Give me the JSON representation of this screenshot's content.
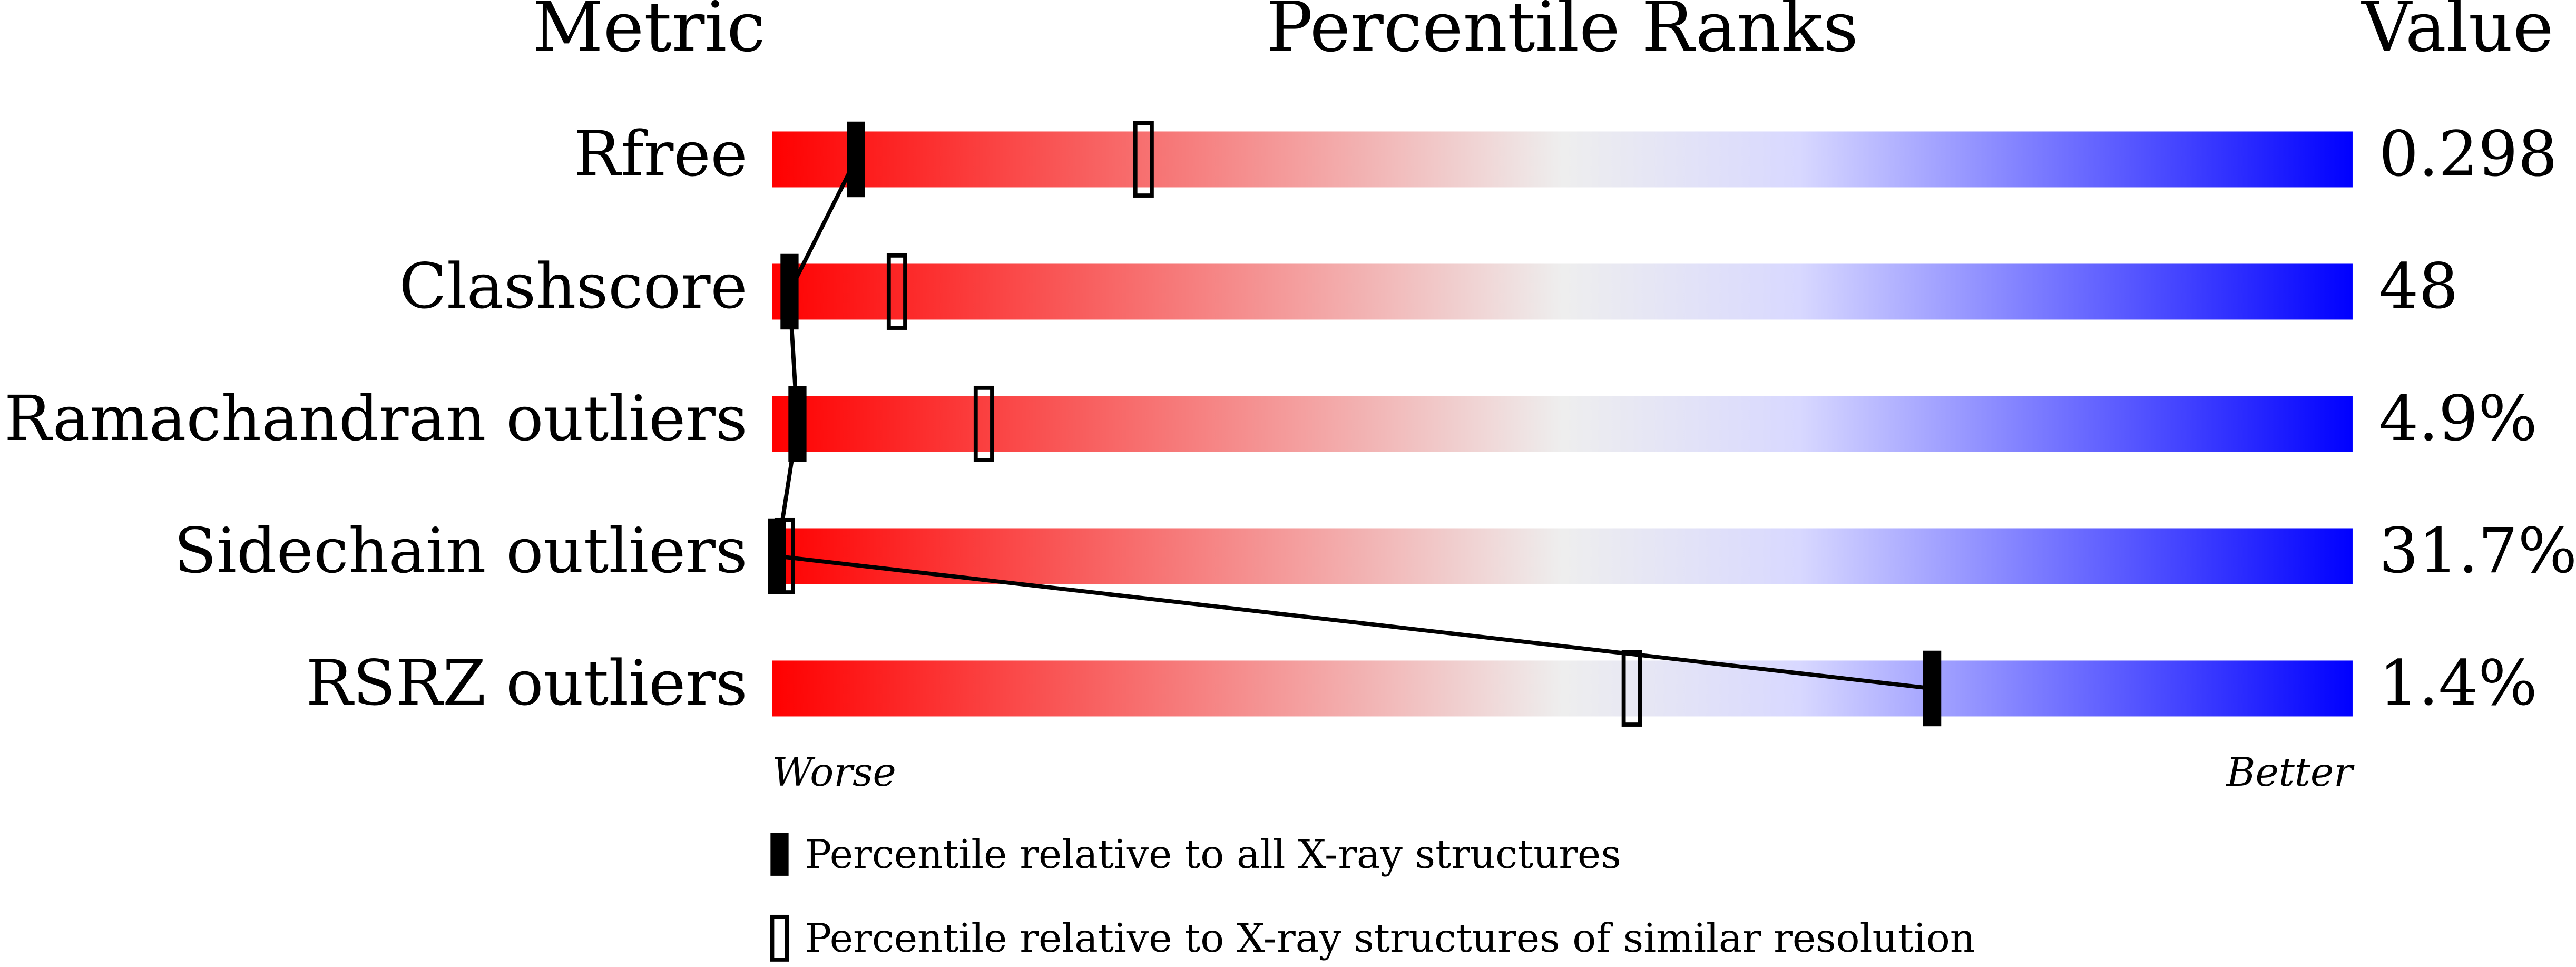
{
  "chart_data": {
    "type": "percentile",
    "title": "Percentile Ranks",
    "metric_header": "Metric",
    "value_header": "Value",
    "categories": [
      "Rfree",
      "Clashscore",
      "Ramachandran outliers",
      "Sidechain outliers",
      "RSRZ outliers"
    ],
    "metric_values": [
      "0.298",
      "48",
      "4.9%",
      "31.7%",
      "1.4%"
    ],
    "series": [
      {
        "name": "Percentile relative to all X-ray structures",
        "color": "#000000",
        "style": "filled",
        "values": [
          5.3,
          1.1,
          1.6,
          0.3,
          73.4
        ]
      },
      {
        "name": "Percentile relative to X-ray structures of similar resolution",
        "color": "#000000",
        "style": "hollow",
        "values": [
          23.5,
          7.9,
          13.4,
          0.8,
          54.4
        ]
      }
    ],
    "xlim": [
      0,
      100
    ],
    "x_low_label": "Worse",
    "x_high_label": "Better",
    "gradient": [
      "#ff0000",
      "#eeeeee",
      "#d8d8ff",
      "#0000ff"
    ]
  }
}
